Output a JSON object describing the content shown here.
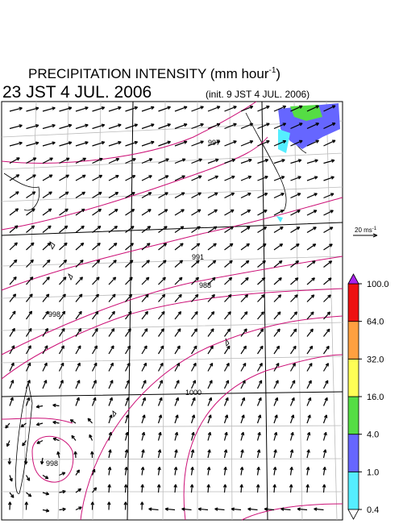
{
  "header": {
    "title": {
      "text": "PRECIPITATION INTENSITY (mm hour",
      "superscript": "-1",
      "closing": ")"
    },
    "valid_time": "23 JST 4 JUL. 2006",
    "init_time": "(init. 9 JST 4 JUL. 2006)"
  },
  "vector_scale": {
    "text": "20 ms",
    "superscript": "-1"
  },
  "colorbar": {
    "levels": [
      {
        "value": 0.4,
        "label": "0.4"
      },
      {
        "value": 1,
        "label": "1.0"
      },
      {
        "value": 4,
        "label": "4.0"
      },
      {
        "value": 16,
        "label": "16.0"
      },
      {
        "value": 32,
        "label": "32.0"
      },
      {
        "value": 64,
        "label": "64.0"
      },
      {
        "value": 100,
        "label": "100.0"
      }
    ],
    "colors": [
      "#55eeff",
      "#6666ff",
      "#55dd44",
      "#ffff55",
      "#ffa040",
      "#ee1111"
    ],
    "under_color": "#ffffff",
    "over_color": "#aa22ee"
  },
  "isobar_labels": [
    "997",
    "991",
    "988",
    "998",
    "1000",
    "998"
  ]
}
